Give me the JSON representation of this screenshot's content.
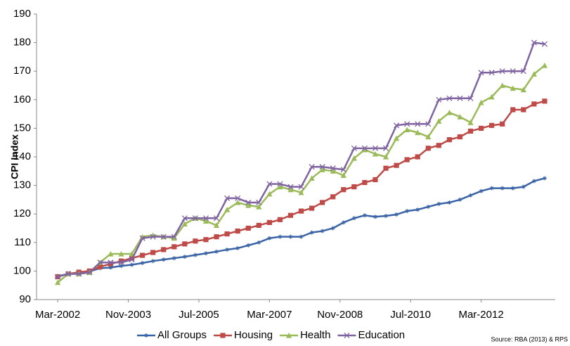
{
  "chart_data": {
    "type": "line",
    "y_label": "CPI Index",
    "source": "Source: RBA (2013) & RPS",
    "x": [
      "Mar-2002",
      "Jun-2002",
      "Sep-2002",
      "Dec-2002",
      "Mar-2003",
      "Jun-2003",
      "Sep-2003",
      "Dec-2003",
      "Mar-2004",
      "Jun-2004",
      "Sep-2004",
      "Dec-2004",
      "Mar-2005",
      "Jun-2005",
      "Sep-2005",
      "Dec-2005",
      "Mar-2006",
      "Jun-2006",
      "Sep-2006",
      "Dec-2006",
      "Mar-2007",
      "Jun-2007",
      "Sep-2007",
      "Dec-2007",
      "Mar-2008",
      "Jun-2008",
      "Sep-2008",
      "Dec-2008",
      "Mar-2009",
      "Jun-2009",
      "Sep-2009",
      "Dec-2009",
      "Mar-2010",
      "Jun-2010",
      "Sep-2010",
      "Dec-2010",
      "Mar-2011",
      "Jun-2011",
      "Sep-2011",
      "Dec-2011",
      "Mar-2012",
      "Jun-2012",
      "Sep-2012",
      "Dec-2012",
      "Mar-2013",
      "Jun-2013",
      "Sep-2013"
    ],
    "xlim": [
      "Sep-2001",
      "Dec-2013"
    ],
    "xticks": [
      "Mar-2002",
      "Nov-2003",
      "Jul-2005",
      "Mar-2007",
      "Nov-2008",
      "Jul-2010",
      "Mar-2012"
    ],
    "ylim": [
      90,
      190
    ],
    "yticks": [
      90,
      100,
      110,
      120,
      130,
      140,
      150,
      160,
      170,
      180,
      190
    ],
    "grid": false,
    "legend": "bottom",
    "series": [
      {
        "name": "All Groups",
        "color": "#3b64a6",
        "marker": "star",
        "values": [
          98.2,
          99,
          99.3,
          99.8,
          101,
          101.2,
          101.8,
          102.2,
          102.8,
          103.5,
          104,
          104.5,
          105,
          105.6,
          106.2,
          106.8,
          107.5,
          108,
          109,
          110,
          111.5,
          112,
          112,
          112,
          113.5,
          114,
          115,
          117,
          118.5,
          119.5,
          119,
          119.3,
          119.8,
          121,
          121.5,
          122.5,
          123.5,
          124,
          125,
          126.5,
          128,
          129,
          129,
          129,
          129.5,
          131.5,
          132.5
        ]
      },
      {
        "name": "Housing",
        "color": "#be4b48",
        "marker": "square",
        "values": [
          98,
          99,
          99.6,
          100,
          101.5,
          102.5,
          103.5,
          104.5,
          105.5,
          106.5,
          107.5,
          108.5,
          109.5,
          110.5,
          111,
          112,
          113,
          114,
          115,
          116,
          117,
          118,
          119.5,
          121,
          122,
          124,
          126,
          128.5,
          129.5,
          131,
          132,
          136,
          137,
          139,
          140,
          143,
          144,
          146,
          147,
          149,
          150,
          151,
          151.5,
          156.5,
          156.5,
          158.5,
          159.5
        ]
      },
      {
        "name": "Health",
        "color": "#9bbb59",
        "marker": "triangle",
        "values": [
          96,
          99,
          99,
          99.5,
          103,
          106,
          106,
          106,
          112,
          112.5,
          112,
          111.5,
          116.5,
          118.5,
          117.5,
          116,
          121.5,
          124,
          123,
          122.5,
          127,
          129.5,
          128.5,
          127.5,
          132.5,
          135.5,
          135,
          133.5,
          139.5,
          142.5,
          141,
          140,
          146.5,
          149.5,
          148.5,
          147,
          152.5,
          155.5,
          154,
          152,
          159,
          161,
          165,
          164,
          163.5,
          169,
          172
        ]
      },
      {
        "name": "Education",
        "color": "#8064a2",
        "marker": "x",
        "values": [
          98,
          99,
          99,
          99.5,
          103,
          103,
          103,
          104,
          111.5,
          112,
          112,
          112,
          118.5,
          118.5,
          118.5,
          118.5,
          125.5,
          125.5,
          124,
          124,
          130.5,
          130.5,
          129.5,
          129.5,
          136.5,
          136.5,
          136,
          135.5,
          143,
          143,
          143,
          143,
          151,
          151.5,
          151.5,
          151.5,
          160,
          160.5,
          160.5,
          160.5,
          169.5,
          169.5,
          170,
          170,
          170,
          180,
          179.5
        ]
      }
    ]
  }
}
